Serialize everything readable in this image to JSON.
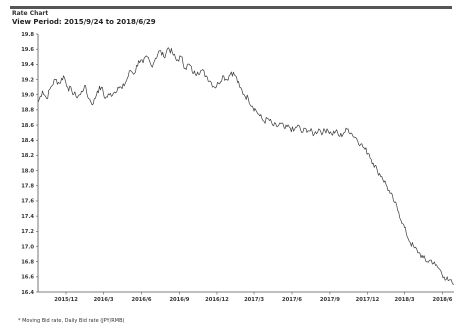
{
  "header": {
    "title": "Rate Chart",
    "view_period": "View Period: 2015/9/24 to 2018/6/29"
  },
  "footnote": "* Moving Bid rate, Daily Bid rate (JPY/RMB)",
  "colors": {
    "line": "#3a3a3a",
    "axis": "#555555",
    "grid": "#ebebeb",
    "tick_text": "#333333"
  },
  "chart_data": {
    "type": "line",
    "title": "",
    "xlabel": "",
    "ylabel": "",
    "ylim": [
      16.4,
      19.8
    ],
    "yticks": [
      19.8,
      19.6,
      19.4,
      19.2,
      19.0,
      18.8,
      18.6,
      18.4,
      18.2,
      18.0,
      17.8,
      17.6,
      17.4,
      17.2,
      17.0,
      16.8,
      16.6,
      16.4
    ],
    "ytick_labels": [
      "19.8",
      "19.6",
      "19.4",
      "19.2",
      "19.0",
      "18.8",
      "18.6",
      "18.4",
      "18.2",
      "18.0",
      "17.8",
      "17.6",
      "17.4",
      "17.2",
      "17.0",
      "16.8",
      "16.6",
      "16.4"
    ],
    "xlim": [
      "2015-09-24",
      "2018-06-29"
    ],
    "xticks": [
      "2015-12-01",
      "2016-03-01",
      "2016-06-01",
      "2016-09-01",
      "2016-12-01",
      "2017-03-01",
      "2017-06-01",
      "2017-09-01",
      "2017-12-01",
      "2018-03-01",
      "2018-06-01"
    ],
    "xtick_labels": [
      "2015/12",
      "2016/3",
      "2016/6",
      "2016/9",
      "2016/12",
      "2017/3",
      "2017/6",
      "2017/9",
      "2017/12",
      "2018/3",
      "2018/6"
    ],
    "grid": false,
    "series": [
      {
        "x": [
          "2015-09-24",
          "2015-10-05",
          "2015-10-15",
          "2015-10-25",
          "2015-11-05",
          "2015-11-15",
          "2015-11-25",
          "2015-12-05",
          "2015-12-15",
          "2015-12-25",
          "2016-01-05",
          "2016-01-15",
          "2016-01-25",
          "2016-02-05",
          "2016-02-15",
          "2016-02-25",
          "2016-03-05",
          "2016-03-15",
          "2016-03-25",
          "2016-04-05",
          "2016-04-15",
          "2016-04-25",
          "2016-05-05",
          "2016-05-15",
          "2016-05-25",
          "2016-06-05",
          "2016-06-15",
          "2016-06-25",
          "2016-07-05",
          "2016-07-15",
          "2016-07-25",
          "2016-08-05",
          "2016-08-15",
          "2016-08-25",
          "2016-09-05",
          "2016-09-15",
          "2016-09-25",
          "2016-10-05",
          "2016-10-15",
          "2016-10-25",
          "2016-11-05",
          "2016-11-15",
          "2016-11-25",
          "2016-12-05",
          "2016-12-15",
          "2016-12-25",
          "2017-01-05",
          "2017-01-15",
          "2017-01-25",
          "2017-02-05",
          "2017-02-15",
          "2017-02-25",
          "2017-03-05",
          "2017-03-15",
          "2017-03-25",
          "2017-04-05",
          "2017-04-15",
          "2017-04-25",
          "2017-05-05",
          "2017-05-15",
          "2017-05-25",
          "2017-06-05",
          "2017-06-15",
          "2017-06-25",
          "2017-07-05",
          "2017-07-15",
          "2017-07-25",
          "2017-08-05",
          "2017-08-15",
          "2017-08-25",
          "2017-09-05",
          "2017-09-15",
          "2017-09-25",
          "2017-10-05",
          "2017-10-15",
          "2017-10-25",
          "2017-11-05",
          "2017-11-15",
          "2017-11-25",
          "2017-12-05",
          "2017-12-15",
          "2017-12-25",
          "2018-01-05",
          "2018-01-15",
          "2018-01-25",
          "2018-02-05",
          "2018-02-15",
          "2018-02-25",
          "2018-03-05",
          "2018-03-15",
          "2018-03-25",
          "2018-04-05",
          "2018-04-15",
          "2018-04-25",
          "2018-05-05",
          "2018-05-15",
          "2018-05-25",
          "2018-06-05",
          "2018-06-15",
          "2018-06-29"
        ],
        "y": [
          18.9,
          19.05,
          18.95,
          19.1,
          19.2,
          19.15,
          19.25,
          19.1,
          19.05,
          18.98,
          19.0,
          19.12,
          18.95,
          18.88,
          19.05,
          19.1,
          18.95,
          19.0,
          19.02,
          19.1,
          19.08,
          19.18,
          19.32,
          19.28,
          19.45,
          19.42,
          19.5,
          19.38,
          19.48,
          19.58,
          19.5,
          19.62,
          19.55,
          19.45,
          19.5,
          19.35,
          19.4,
          19.28,
          19.3,
          19.32,
          19.25,
          19.18,
          19.1,
          19.15,
          19.25,
          19.2,
          19.3,
          19.25,
          19.1,
          19.0,
          18.95,
          18.85,
          18.8,
          18.72,
          18.65,
          18.68,
          18.6,
          18.58,
          18.62,
          18.55,
          18.58,
          18.52,
          18.6,
          18.5,
          18.55,
          18.52,
          18.48,
          18.55,
          18.5,
          18.55,
          18.48,
          18.52,
          18.45,
          18.5,
          18.55,
          18.48,
          18.42,
          18.35,
          18.28,
          18.22,
          18.1,
          18.0,
          17.92,
          17.82,
          17.7,
          17.58,
          17.45,
          17.3,
          17.18,
          17.05,
          16.98,
          16.92,
          16.85,
          16.8,
          16.82,
          16.75,
          16.7,
          16.6,
          16.55,
          16.5
        ]
      }
    ]
  }
}
